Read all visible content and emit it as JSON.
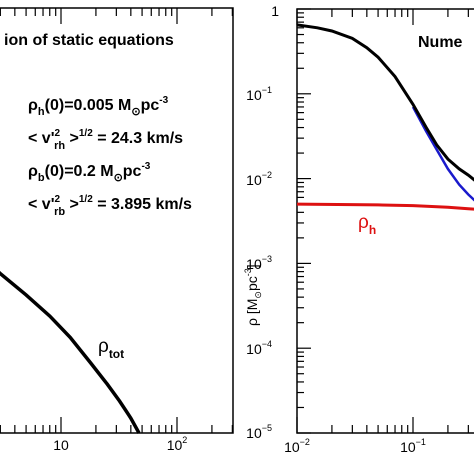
{
  "chart_data": [
    {
      "type": "line",
      "title": "ion of static equations",
      "xscale": "log",
      "xlim": [
        0.5,
        500
      ],
      "x_ticklabels": [
        "10",
        "10²"
      ],
      "annotations": {
        "rho_h0": "ρ_h(0)=0.005 M_⊙pc⁻³",
        "v_rh": "< v'²_rh >^1/2 = 24.3 km/s",
        "rho_b0": "ρ_b(0)=0.2 M_⊙pc⁻³",
        "v_rb": "< v'²_rb >^1/2 = 3.895 km/s"
      },
      "series": [
        {
          "name": "ρ_tot",
          "color": "#000000",
          "x": [
            0.55,
            0.7,
            0.9,
            1.1,
            1.4,
            2,
            3,
            5,
            8,
            12,
            18,
            25,
            32,
            40,
            47
          ],
          "y_frac_of_panel": [
            0.46,
            0.478,
            0.5,
            0.52,
            0.545,
            0.58,
            0.625,
            0.675,
            0.725,
            0.775,
            0.835,
            0.885,
            0.925,
            0.965,
            1.0
          ]
        }
      ]
    },
    {
      "type": "line",
      "title": "Nume",
      "xscale": "log",
      "yscale": "log",
      "xlabel": "",
      "ylabel": "ρ [M⊙pc⁻³]",
      "xlim": [
        0.01,
        0.6
      ],
      "ylim": [
        1e-05,
        1
      ],
      "x_ticklabels": [
        "10⁻²",
        "10⁻¹"
      ],
      "y_ticklabels": [
        "1",
        "10⁻¹",
        "10⁻²",
        "10⁻³",
        "10⁻⁴",
        "10⁻⁵"
      ],
      "series": [
        {
          "name": "",
          "color": "#000000",
          "x": [
            0.01,
            0.015,
            0.02,
            0.03,
            0.04,
            0.05,
            0.07,
            0.1,
            0.13,
            0.16,
            0.2,
            0.25,
            0.3,
            0.4,
            0.5,
            0.6
          ],
          "y": [
            0.65,
            0.6,
            0.55,
            0.45,
            0.35,
            0.27,
            0.16,
            0.075,
            0.04,
            0.025,
            0.017,
            0.013,
            0.011,
            0.008,
            0.0062,
            0.0055
          ]
        },
        {
          "name": "",
          "color": "#1a1acc",
          "x": [
            0.1,
            0.13,
            0.16,
            0.2,
            0.25,
            0.3,
            0.4,
            0.5,
            0.6
          ],
          "y": [
            0.07,
            0.036,
            0.022,
            0.013,
            0.0085,
            0.0065,
            0.0045,
            0.0036,
            0.003
          ]
        },
        {
          "name": "ρ_h",
          "color": "#dd1111",
          "x": [
            0.01,
            0.05,
            0.1,
            0.2,
            0.3,
            0.5,
            0.6
          ],
          "y": [
            0.005,
            0.0049,
            0.0048,
            0.0046,
            0.0044,
            0.0042,
            0.0041
          ]
        }
      ]
    }
  ]
}
